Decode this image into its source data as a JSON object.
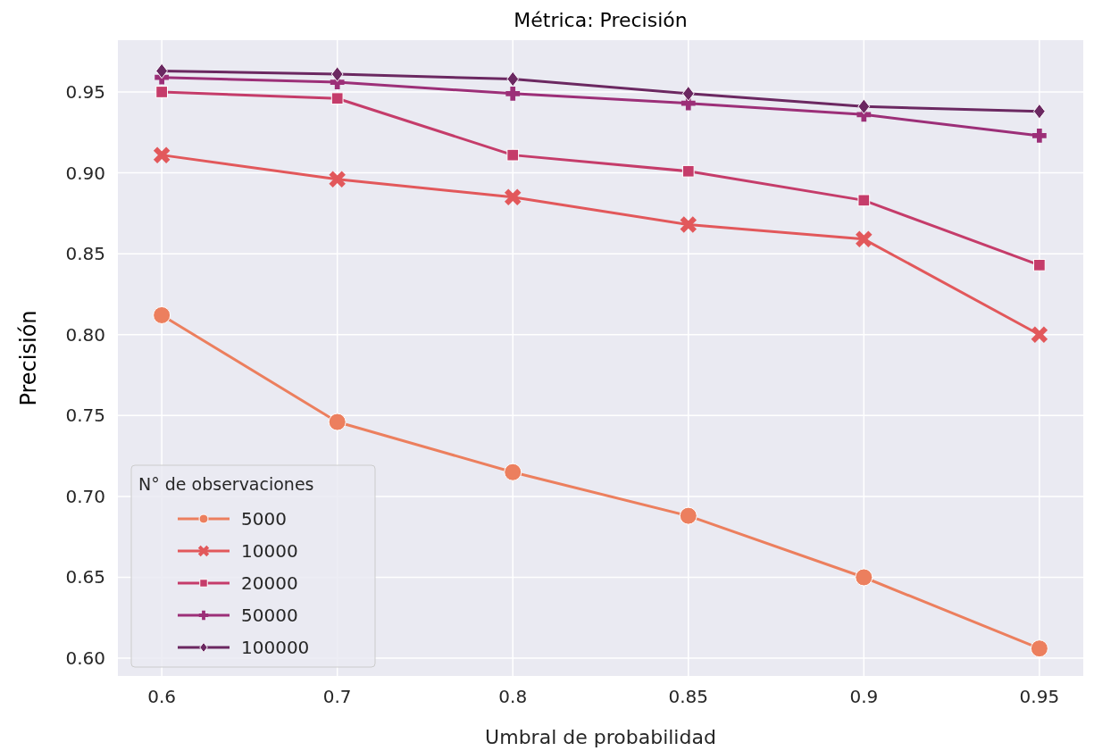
{
  "chart_data": {
    "type": "line",
    "title": "Métrica: Precisión",
    "xlabel": "Umbral de probabilidad",
    "ylabel": "Precisión",
    "legend_title": "N° de observaciones",
    "categories": [
      "0.6",
      "0.7",
      "0.8",
      "0.85",
      "0.9",
      "0.95"
    ],
    "ylim": [
      0.589,
      0.982
    ],
    "yticks": [
      {
        "value": 0.6,
        "label": "0.60"
      },
      0.65,
      {
        "value": 0.7,
        "label": "0.70"
      },
      0.75,
      {
        "value": 0.8,
        "label": "0.80"
      },
      0.85,
      {
        "value": 0.9,
        "label": "0.90"
      },
      0.95
    ],
    "grid": true,
    "legend": "bottom left",
    "series": [
      {
        "name": "5000",
        "color": "#ec7f5e",
        "marker": "circle",
        "values": [
          0.812,
          0.746,
          0.715,
          0.688,
          0.65,
          0.606
        ]
      },
      {
        "name": "10000",
        "color": "#e2585b",
        "marker": "cross",
        "values": [
          0.911,
          0.896,
          0.885,
          0.868,
          0.859,
          0.8
        ]
      },
      {
        "name": "20000",
        "color": "#c53c6a",
        "marker": "square",
        "values": [
          0.95,
          0.946,
          0.911,
          0.901,
          0.883,
          0.843
        ]
      },
      {
        "name": "50000",
        "color": "#9c2f78",
        "marker": "plus",
        "values": [
          0.959,
          0.956,
          0.949,
          0.943,
          0.936,
          0.923
        ]
      },
      {
        "name": "100000",
        "color": "#6b2861",
        "marker": "diamond",
        "values": [
          0.963,
          0.961,
          0.958,
          0.949,
          0.941,
          0.938
        ]
      }
    ]
  }
}
